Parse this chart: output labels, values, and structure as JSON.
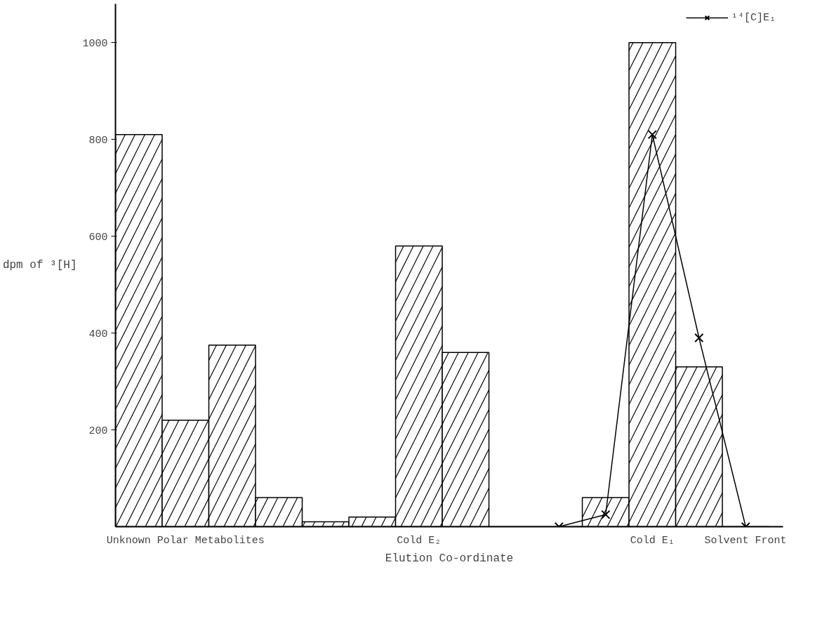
{
  "chart_data": {
    "type": "bar",
    "xlabel": "Elution Co-ordinate",
    "ylabel": "dpm of ³[H]",
    "categories": [
      null,
      "Unknown Polar Metabolites",
      null,
      null,
      null,
      null,
      "Cold E₂",
      null,
      null,
      null,
      null,
      "Cold E₁",
      null,
      "Solvent Front"
    ],
    "ylim": [
      0,
      1080
    ],
    "yticks": [
      200,
      400,
      600,
      800,
      1000
    ],
    "grid": false,
    "legend": "top right",
    "series": [
      {
        "color": "#000000",
        "values": [
          810,
          220,
          375,
          60,
          10,
          20,
          580,
          360,
          0,
          0,
          60,
          1000,
          330,
          0
        ]
      },
      {
        "type": "line",
        "name": "¹⁴[C]E₁",
        "color": "#000000",
        "marker": "cross",
        "values": [
          null,
          null,
          null,
          null,
          null,
          null,
          null,
          null,
          null,
          0,
          25,
          810,
          390,
          0
        ]
      }
    ]
  }
}
